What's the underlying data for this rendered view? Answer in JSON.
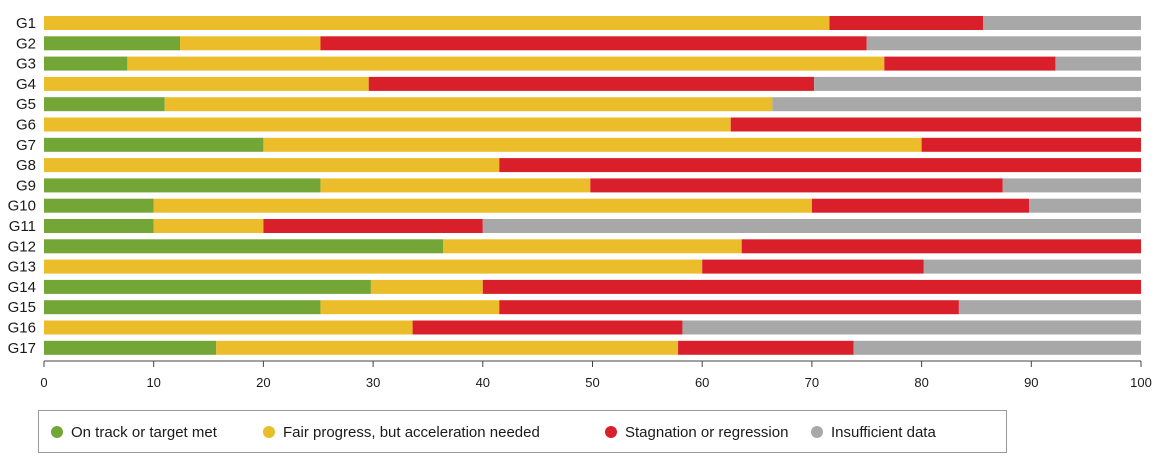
{
  "chart_data": {
    "type": "bar",
    "orientation": "horizontal",
    "stacked": true,
    "categories": [
      "G1",
      "G2",
      "G3",
      "G4",
      "G5",
      "G6",
      "G7",
      "G8",
      "G9",
      "G10",
      "G11",
      "G12",
      "G13",
      "G14",
      "G15",
      "G16",
      "G17"
    ],
    "series": [
      {
        "name": "On track or target met",
        "color": "#73a537",
        "values": [
          0,
          12.4,
          7.6,
          0,
          11,
          0,
          20,
          0,
          25.2,
          10,
          10,
          36.4,
          0,
          29.8,
          25.2,
          0,
          15.7
        ]
      },
      {
        "name": "Fair progress, but acceleration needed",
        "color": "#ebbd2a",
        "values": [
          71.6,
          12.8,
          69,
          29.6,
          55.4,
          62.6,
          60,
          41.5,
          24.6,
          60,
          10,
          27.2,
          60,
          10.2,
          16.3,
          33.6,
          42.1
        ]
      },
      {
        "name": "Stagnation or regression",
        "color": "#d9202a",
        "values": [
          14,
          49.8,
          15.6,
          40.6,
          0,
          37.4,
          20,
          58.5,
          37.6,
          19.8,
          20,
          36.4,
          20.2,
          60,
          41.9,
          24.6,
          16
        ]
      },
      {
        "name": "Insufficient data",
        "color": "#a8a8a8",
        "values": [
          14.4,
          25,
          7.8,
          29.8,
          33.6,
          0,
          0,
          0,
          12.6,
          10.2,
          60,
          0,
          19.8,
          0,
          16.6,
          41.8,
          26.2
        ]
      }
    ],
    "x_ticks": [
      "0",
      "10",
      "20",
      "30",
      "40",
      "50",
      "60",
      "70",
      "80",
      "90",
      "100"
    ],
    "xlim": [
      0,
      100
    ],
    "title": "",
    "xlabel": "",
    "ylabel": "",
    "grid": false,
    "legend_position": "bottom"
  }
}
